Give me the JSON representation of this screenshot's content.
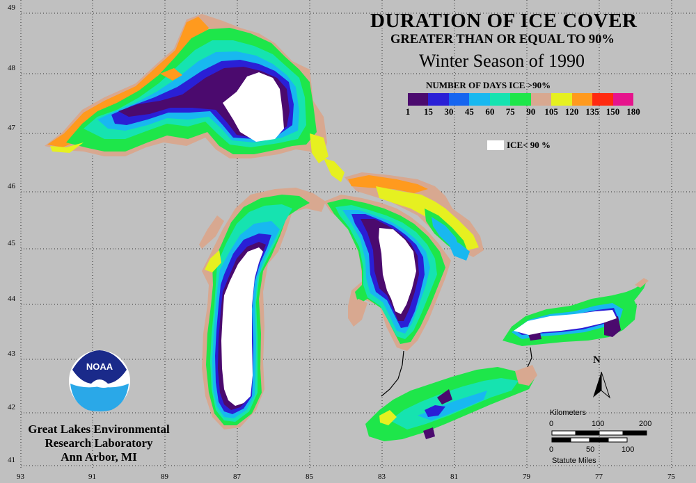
{
  "title": {
    "line1": "DURATION OF ICE COVER",
    "line2": "GREATER THAN OR EQUAL TO 90%",
    "line3": "Winter Season of 1990"
  },
  "legend": {
    "title": "NUMBER OF DAYS ICE >90%",
    "ticks": [
      "1",
      "15",
      "30",
      "45",
      "60",
      "75",
      "90",
      "105",
      "120",
      "135",
      "150",
      "180"
    ],
    "colors": [
      "#4b0a6e",
      "#2a1fd6",
      "#1565f0",
      "#18b8f0",
      "#16e3b0",
      "#1ee64a",
      "#d8a890",
      "#e6f020",
      "#ff9a1e",
      "#ff2a10",
      "#e6148c"
    ],
    "ice_below_label": "ICE< 90 %",
    "ice_below_color": "#ffffff"
  },
  "axes": {
    "latitudes": [
      "49",
      "48",
      "47",
      "46",
      "45",
      "44",
      "43",
      "42",
      "41"
    ],
    "longitudes": [
      "93",
      "91",
      "89",
      "87",
      "85",
      "83",
      "81",
      "79",
      "77",
      "75"
    ]
  },
  "logo": {
    "text": "NOAA"
  },
  "organization": {
    "line1": "Great Lakes Environmental",
    "line2": "Research Laboratory",
    "line3": "Ann Arbor, MI"
  },
  "scale": {
    "km_label": "Kilometers",
    "km_ticks": [
      "0",
      "100",
      "200"
    ],
    "mi_ticks": [
      "0",
      "50",
      "100"
    ],
    "mi_label": "Statute Miles"
  },
  "north_arrow": {
    "label": "N"
  }
}
